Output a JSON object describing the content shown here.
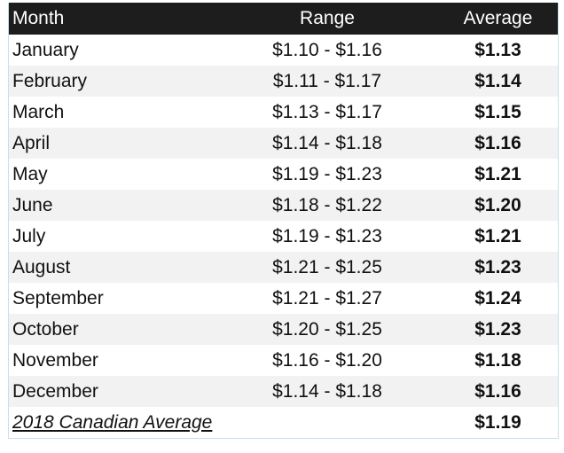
{
  "header": {
    "columns": [
      "Month",
      "Range",
      "Average"
    ]
  },
  "table": {
    "rows": [
      [
        "January",
        "$1.10 - $1.16",
        "$1.13"
      ],
      [
        "February",
        "$1.11 - $1.17",
        "$1.14"
      ],
      [
        "March",
        "$1.13 - $1.17",
        "$1.15"
      ],
      [
        "April",
        "$1.14 - $1.18",
        "$1.16"
      ],
      [
        "May",
        "$1.19 - $1.23",
        "$1.21"
      ],
      [
        "June",
        "$1.18 - $1.22",
        "$1.20"
      ],
      [
        "July",
        "$1.19 - $1.23",
        "$1.21"
      ],
      [
        "August",
        "$1.21 - $1.25",
        "$1.23"
      ],
      [
        "September",
        "$1.21 - $1.27",
        "$1.24"
      ],
      [
        "October",
        "$1.20 - $1.25",
        "$1.23"
      ],
      [
        "November",
        "$1.16 - $1.20",
        "$1.18"
      ],
      [
        "December",
        "$1.14 - $1.18",
        "$1.16"
      ]
    ]
  },
  "footer": {
    "label": "2018 Canadian Average",
    "value": "$1.19"
  }
}
